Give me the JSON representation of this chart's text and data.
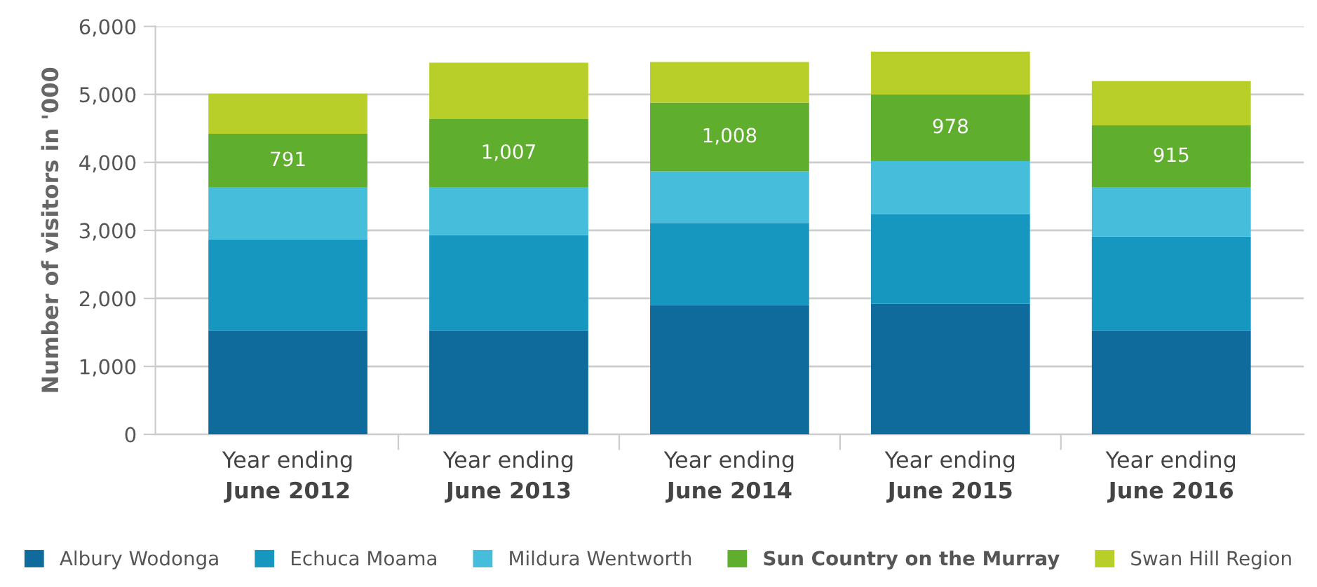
{
  "chart_data": {
    "type": "bar",
    "stacked": true,
    "ylabel": "Number of visitors in '000",
    "categories": [
      "Year ending\nJune 2012",
      "Year ending\nJune 2013",
      "Year ending\nJune 2014",
      "Year ending\nJune 2015",
      "Year ending\nJune 2016"
    ],
    "series": [
      {
        "name": "Albury Wodonga",
        "color": "#0f6b9c",
        "values": [
          1530,
          1530,
          1900,
          1920,
          1530
        ]
      },
      {
        "name": "Echuca Moama",
        "color": "#1597c0",
        "values": [
          1340,
          1400,
          1210,
          1320,
          1380
        ]
      },
      {
        "name": "Mildura Wentworth",
        "color": "#45bddb",
        "values": [
          760,
          700,
          760,
          780,
          720
        ]
      },
      {
        "name": "Sun Country on the Murray",
        "color": "#5fae2e",
        "values": [
          791,
          1007,
          1008,
          978,
          915
        ],
        "value_labels": [
          "791",
          "1,007",
          "1,008",
          "978",
          "915"
        ]
      },
      {
        "name": "Swan Hill Region",
        "color": "#b8cf2a",
        "values": [
          590,
          830,
          600,
          630,
          650
        ]
      }
    ],
    "ylim": [
      0,
      6000
    ],
    "yticks": [
      {
        "value": 0,
        "label": "0"
      },
      {
        "value": 1000,
        "label": "1,000"
      },
      {
        "value": 2000,
        "label": "2,000"
      },
      {
        "value": 3000,
        "label": "3,000"
      },
      {
        "value": 4000,
        "label": "4,000"
      },
      {
        "value": 5000,
        "label": "5,000"
      },
      {
        "value": 6000,
        "label": "6,000"
      }
    ],
    "grid": "y",
    "legend": "bottom"
  }
}
